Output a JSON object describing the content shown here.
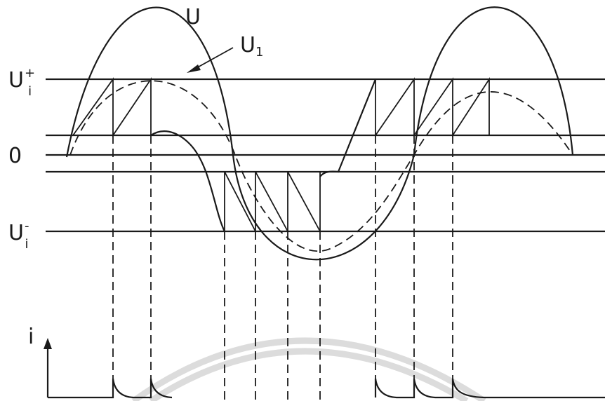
{
  "labels": {
    "u": "U",
    "u1_main": "U",
    "u1_sub": "1",
    "upper_main": "U",
    "upper_sup": "+",
    "upper_sub": "i",
    "zero": "0",
    "lower_main": "U",
    "lower_sup": "-",
    "lower_sub": "i",
    "current": "i"
  },
  "colors": {
    "ink": "#1a1a1a",
    "watermark": "#dcdcdc"
  }
}
